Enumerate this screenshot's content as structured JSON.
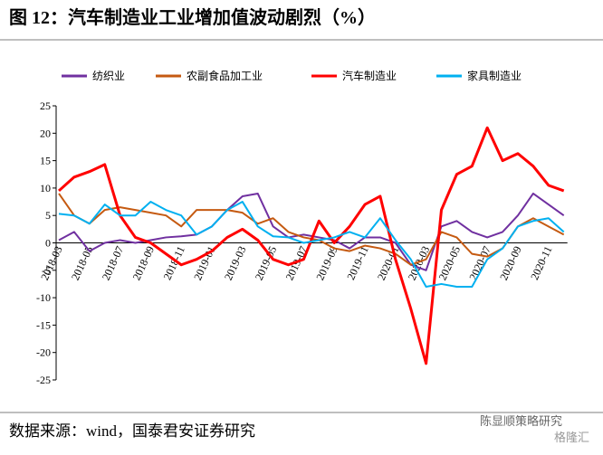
{
  "header": {
    "title": "图 12：汽车制造业工业增加值波动剧烈（%）"
  },
  "chart_data": {
    "type": "line",
    "categories": [
      "2018-03",
      null,
      "2018-05",
      null,
      "2018-07",
      null,
      "2018-09",
      null,
      "2018-11",
      null,
      "2019-01",
      null,
      "2019-03",
      null,
      "2019-05",
      null,
      "2019-07",
      null,
      "2019-09",
      null,
      "2019-11",
      null,
      "2020-01",
      null,
      "2020-03",
      null,
      "2020-05",
      null,
      "2020-07",
      null,
      "2020-09",
      null,
      "2020-11",
      null
    ],
    "series": [
      {
        "name": "纺织业",
        "color": "#7030a0",
        "values": [
          0.5,
          2,
          -1.5,
          0,
          0.5,
          0,
          0.5,
          1,
          1.2,
          1.5,
          3,
          6,
          8.5,
          9,
          3,
          1,
          1.5,
          1,
          0.5,
          -1,
          1,
          1,
          0,
          -4,
          -5,
          3,
          4,
          2,
          1,
          2,
          5,
          9,
          7,
          5
        ]
      },
      {
        "name": "农副食品加工业",
        "color": "#c55a11",
        "values": [
          9,
          5,
          3.5,
          6,
          6.5,
          6,
          5.5,
          5,
          3,
          6,
          6,
          6,
          5.5,
          3.5,
          4.5,
          2,
          1,
          0.5,
          -1,
          -1.5,
          -0.5,
          -1,
          -2,
          -4,
          -3,
          2,
          1,
          -2,
          -2.5,
          -1,
          3,
          4.5,
          3,
          1.5
        ]
      },
      {
        "name": "汽车制造业",
        "color": "#ff0000",
        "values": [
          9.5,
          12,
          13,
          14.3,
          5,
          1,
          0,
          -2,
          -4,
          -3,
          -1.5,
          1,
          2.5,
          0.5,
          -3,
          -4,
          -3,
          4,
          0,
          3,
          7,
          8.5,
          -3,
          -12,
          -22,
          6,
          12.5,
          14,
          21,
          15,
          16.3,
          14,
          10.5,
          9.5
        ]
      },
      {
        "name": "家具制造业",
        "color": "#00b0f0",
        "values": [
          5.3,
          5,
          3.5,
          7,
          5,
          5,
          7.5,
          6,
          5,
          1.5,
          3,
          6,
          7.5,
          3,
          1.2,
          1,
          0,
          0.5,
          1,
          2,
          1,
          4.5,
          0.5,
          -3,
          -8,
          -7.5,
          -8,
          -8,
          -3,
          -1,
          3,
          4,
          4.5,
          2
        ]
      }
    ],
    "ylim": [
      -25,
      25
    ],
    "yticks": [
      -25,
      -20,
      -15,
      -10,
      -5,
      0,
      5,
      10,
      15,
      20,
      25
    ]
  },
  "footer": {
    "source": "数据来源：wind，国泰君安证券研究",
    "watermark": "陈显顺策略研究",
    "brand": "格隆汇"
  }
}
